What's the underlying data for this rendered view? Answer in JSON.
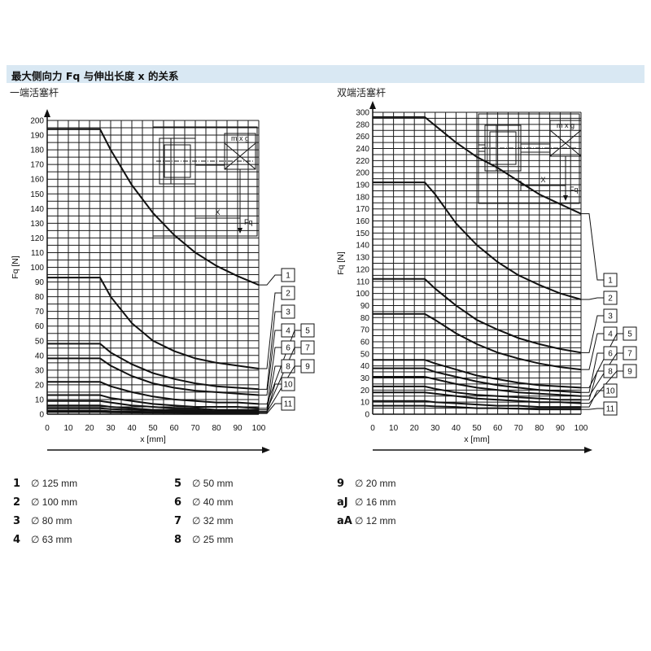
{
  "page": {
    "title": "最大侧向力 Fq 与伸出长度 x 的关系",
    "subtitle_left": "一端活塞杆",
    "subtitle_right": "双端活塞杆"
  },
  "inset": {
    "load_label": "m x g",
    "x_label": "X",
    "force_label": "Fq"
  },
  "legend": [
    {
      "num": "1",
      "label": "∅ 125 mm"
    },
    {
      "num": "2",
      "label": "∅ 100 mm"
    },
    {
      "num": "3",
      "label": "∅ 80 mm"
    },
    {
      "num": "4",
      "label": "∅ 63 mm"
    },
    {
      "num": "5",
      "label": "∅ 50 mm"
    },
    {
      "num": "6",
      "label": "∅ 40 mm"
    },
    {
      "num": "7",
      "label": "∅ 32 mm"
    },
    {
      "num": "8",
      "label": "∅ 25 mm"
    },
    {
      "num": "9",
      "label": "∅ 20 mm"
    },
    {
      "num": "aJ",
      "label": "∅ 16 mm"
    },
    {
      "num": "aA",
      "label": "∅ 12 mm"
    }
  ],
  "chart_data": [
    {
      "type": "line",
      "title": "一端活塞杆",
      "xlabel": "x [mm]",
      "ylabel": "Fq [N]",
      "xlim": [
        0,
        100
      ],
      "ylim": [
        0,
        200
      ],
      "x_ticks": [
        0,
        10,
        20,
        30,
        40,
        50,
        60,
        70,
        80,
        90,
        100
      ],
      "y_ticks": [
        0,
        10,
        20,
        30,
        40,
        50,
        60,
        70,
        80,
        90,
        100,
        110,
        120,
        130,
        140,
        150,
        160,
        170,
        180,
        190,
        200
      ],
      "x": [
        0,
        25,
        30,
        40,
        50,
        60,
        70,
        80,
        90,
        100
      ],
      "series": [
        {
          "name": "1",
          "values": [
            194,
            194,
            180,
            156,
            137,
            122,
            110,
            101,
            94,
            88
          ]
        },
        {
          "name": "2",
          "values": [
            93,
            93,
            80,
            62,
            50,
            43,
            38,
            35,
            33,
            31
          ]
        },
        {
          "name": "3",
          "values": [
            48,
            48,
            42,
            34,
            28,
            24,
            21,
            19,
            18,
            17
          ]
        },
        {
          "name": "4",
          "values": [
            38,
            38,
            33,
            26,
            21,
            18,
            16,
            15,
            14,
            13
          ]
        },
        {
          "name": "5",
          "values": [
            22,
            22,
            19,
            15,
            12,
            10,
            9,
            8,
            8,
            7
          ]
        },
        {
          "name": "6",
          "values": [
            13,
            13,
            11,
            9,
            7,
            6,
            5,
            5,
            5,
            4
          ]
        },
        {
          "name": "7",
          "values": [
            9,
            9,
            8,
            6,
            5,
            4,
            4,
            3,
            3,
            3
          ]
        },
        {
          "name": "8",
          "values": [
            6,
            6,
            5,
            4,
            3,
            3,
            3,
            2,
            2,
            2
          ]
        },
        {
          "name": "9",
          "values": [
            4,
            4,
            3.5,
            3,
            2.5,
            2,
            2,
            1.5,
            1.5,
            1.5
          ]
        },
        {
          "name": "10",
          "values": [
            2.5,
            2.5,
            2,
            1.8,
            1.5,
            1.3,
            1.2,
            1.1,
            1,
            1
          ]
        },
        {
          "name": "11",
          "values": [
            1.5,
            1.5,
            1.3,
            1.1,
            1,
            0.9,
            0.8,
            0.7,
            0.6,
            0.5
          ]
        }
      ]
    },
    {
      "type": "line",
      "title": "双端活塞杆",
      "xlabel": "x [mm]",
      "ylabel": "Fq [N]",
      "xlim": [
        0,
        100
      ],
      "ylim": [
        0,
        300
      ],
      "x_ticks": [
        0,
        10,
        20,
        30,
        40,
        50,
        60,
        70,
        80,
        90,
        100
      ],
      "y_ticks": [
        0,
        10,
        20,
        30,
        40,
        50,
        60,
        70,
        80,
        90,
        100,
        110,
        120,
        130,
        140,
        150,
        160,
        170,
        180,
        190,
        200,
        220,
        240,
        260,
        280,
        300
      ],
      "y_scale_note": "0–200 in steps of 10, 200–300 in steps of 20",
      "x": [
        0,
        25,
        30,
        40,
        50,
        60,
        70,
        80,
        90,
        100
      ],
      "series": [
        {
          "name": "1",
          "values": [
            292,
            292,
            278,
            250,
            226,
            208,
            193,
            182,
            174,
            166
          ]
        },
        {
          "name": "2",
          "values": [
            192,
            192,
            182,
            158,
            140,
            126,
            115,
            107,
            100,
            95
          ]
        },
        {
          "name": "3",
          "values": [
            112,
            112,
            104,
            90,
            78,
            70,
            63,
            58,
            54,
            51
          ]
        },
        {
          "name": "4",
          "values": [
            83,
            83,
            78,
            67,
            58,
            51,
            46,
            42,
            39,
            37
          ]
        },
        {
          "name": "5",
          "values": [
            45,
            45,
            42,
            37,
            32,
            29,
            26,
            24,
            23,
            22
          ]
        },
        {
          "name": "6",
          "values": [
            38,
            38,
            35,
            31,
            27,
            24,
            22,
            20,
            19,
            18
          ]
        },
        {
          "name": "7",
          "values": [
            31,
            31,
            29,
            25,
            22,
            20,
            18,
            17,
            16,
            15
          ]
        },
        {
          "name": "8",
          "values": [
            23,
            23,
            21,
            18,
            16,
            15,
            14,
            13,
            12,
            12
          ]
        },
        {
          "name": "9",
          "values": [
            18,
            18,
            17,
            15,
            13,
            12,
            11,
            10,
            10,
            9
          ]
        },
        {
          "name": "10",
          "values": [
            11,
            11,
            10,
            9,
            8,
            7,
            7,
            6,
            6,
            6
          ]
        },
        {
          "name": "11",
          "values": [
            7,
            7,
            6.5,
            6,
            5,
            5,
            4.5,
            4,
            4,
            4
          ]
        }
      ]
    }
  ]
}
